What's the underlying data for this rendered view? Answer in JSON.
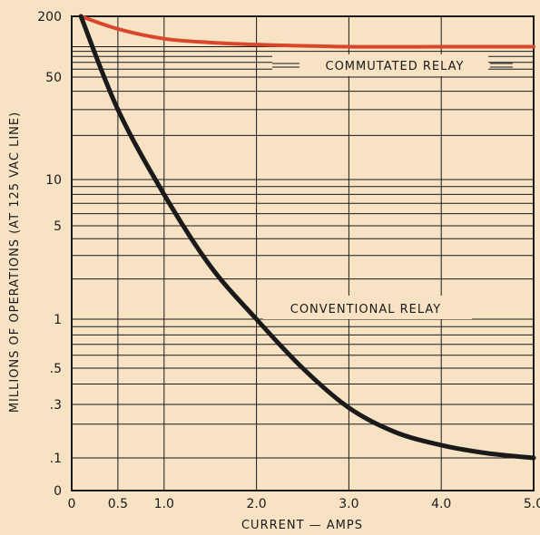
{
  "chart_data": {
    "type": "line",
    "title": "",
    "xlabel": "CURRENT — AMPS",
    "ylabel": "MILLIONS OF OPERATIONS (AT 125 VAC LINE)",
    "x_ticks": [
      "0",
      "0.5",
      "1.0",
      "2.0",
      "3.0",
      "4.0",
      "5.0"
    ],
    "y_ticks": [
      "0",
      ".1",
      ".3",
      ".5",
      "1",
      "5",
      "10",
      "50",
      "200"
    ],
    "xlim": [
      0,
      5
    ],
    "ylim": [
      0,
      200
    ],
    "y_scale": "log-like (non-uniform)",
    "grid": true,
    "series": [
      {
        "name": "COMMUTATED RELAY",
        "color": "#d9462c",
        "x": [
          0.1,
          0.5,
          1.0,
          1.5,
          2.0,
          3.0,
          4.0,
          5.0
        ],
        "y": [
          200,
          150,
          120,
          110,
          105,
          100,
          100,
          100
        ]
      },
      {
        "name": "CONVENTIONAL RELAY",
        "color": "#1a1a1a",
        "x": [
          0.1,
          0.5,
          1.0,
          1.5,
          2.0,
          2.5,
          3.0,
          3.5,
          4.0,
          4.5,
          5.0
        ],
        "y": [
          200,
          30,
          8,
          2.5,
          1,
          0.5,
          0.28,
          0.17,
          0.13,
          0.11,
          0.1
        ]
      }
    ]
  }
}
